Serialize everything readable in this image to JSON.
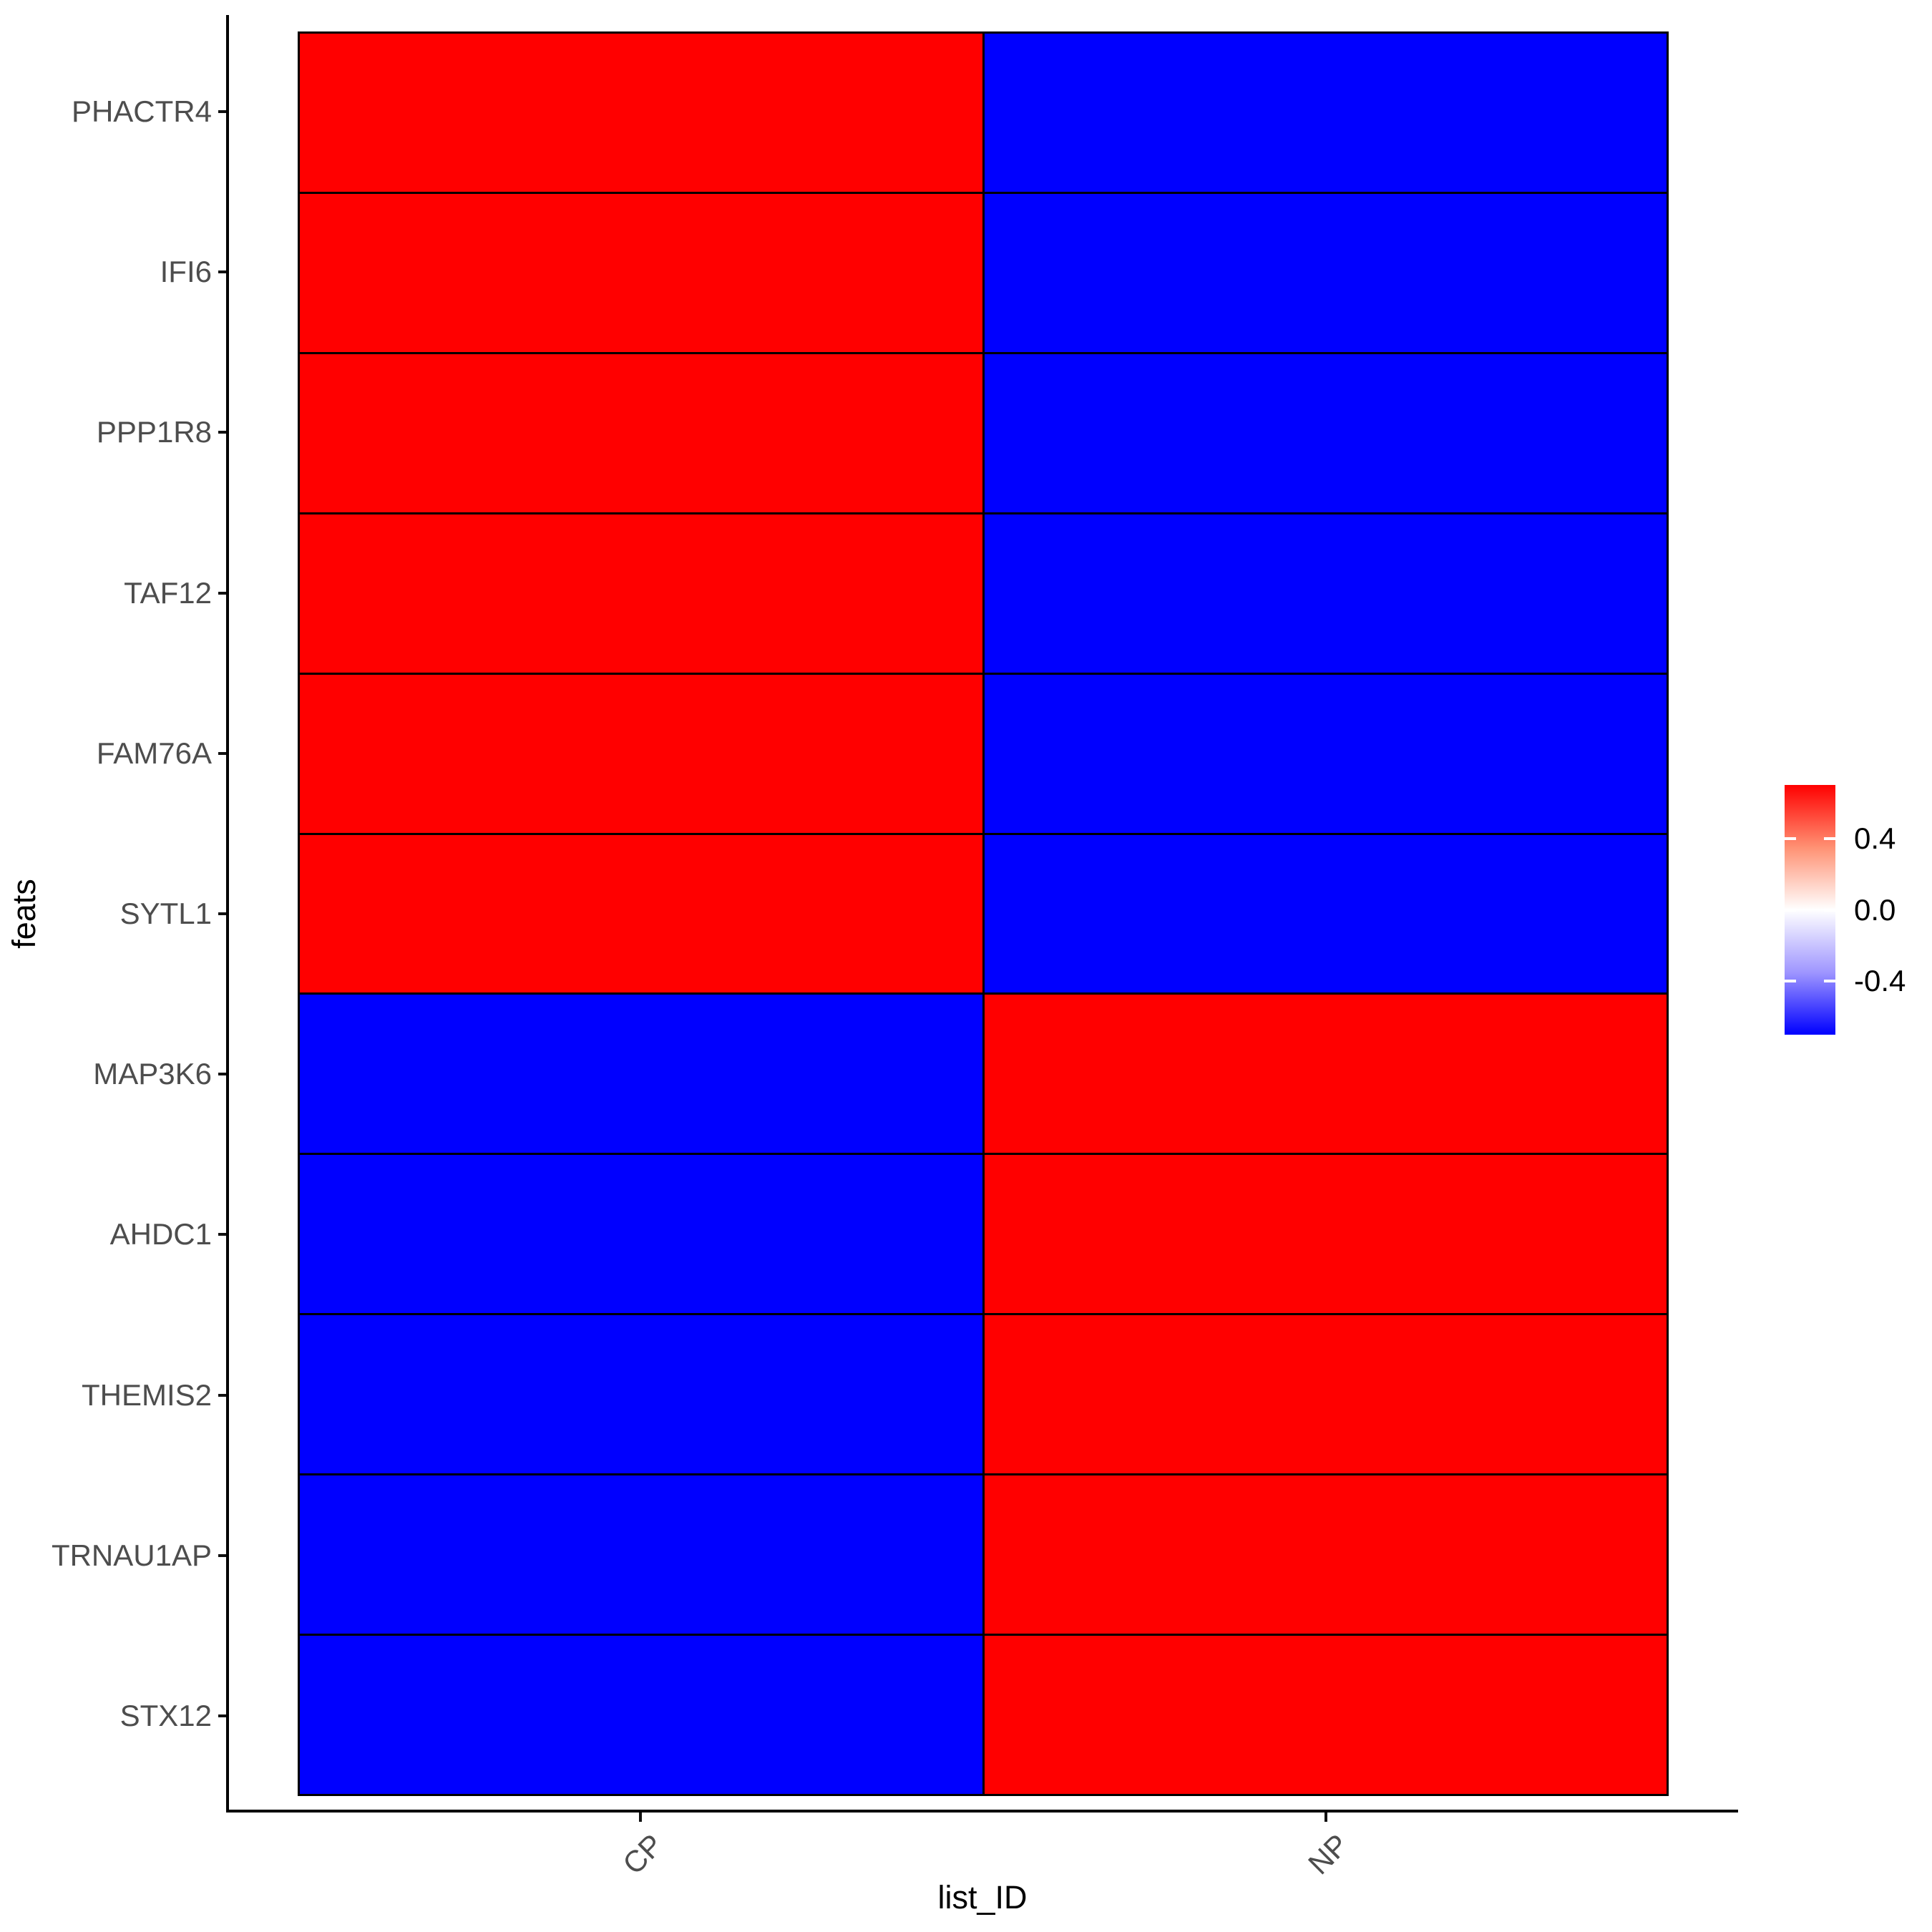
{
  "chart_data": {
    "type": "heatmap",
    "x": [
      "CP",
      "NP"
    ],
    "y": [
      "PHACTR4",
      "IFI6",
      "PPP1R8",
      "TAF12",
      "FAM76A",
      "SYTL1",
      "MAP3K6",
      "AHDC1",
      "THEMIS2",
      "TRNAU1AP",
      "STX12"
    ],
    "xlabel": "list_ID",
    "ylabel": "feats",
    "values_by_row": [
      [
        0.7,
        -0.7
      ],
      [
        0.7,
        -0.7
      ],
      [
        0.7,
        -0.7
      ],
      [
        0.7,
        -0.7
      ],
      [
        0.7,
        -0.7
      ],
      [
        0.7,
        -0.7
      ],
      [
        -0.7,
        0.7
      ],
      [
        -0.7,
        0.7
      ],
      [
        -0.7,
        0.7
      ],
      [
        -0.7,
        0.7
      ],
      [
        -0.7,
        0.7
      ]
    ],
    "legend": {
      "position": "right",
      "breaks": [
        0.4,
        0.0,
        -0.4
      ],
      "break_labels": [
        "0.4",
        "0.0",
        "-0.4"
      ],
      "limits": [
        -0.705,
        0.705
      ],
      "colors": {
        "high": "#FF0000",
        "mid": "#FFFFFF",
        "low": "#0000FF"
      }
    },
    "cell_border_color": "#000000",
    "axis_text_color": "#4D4D4D",
    "axis_line_color": "#000000",
    "grid": false
  }
}
